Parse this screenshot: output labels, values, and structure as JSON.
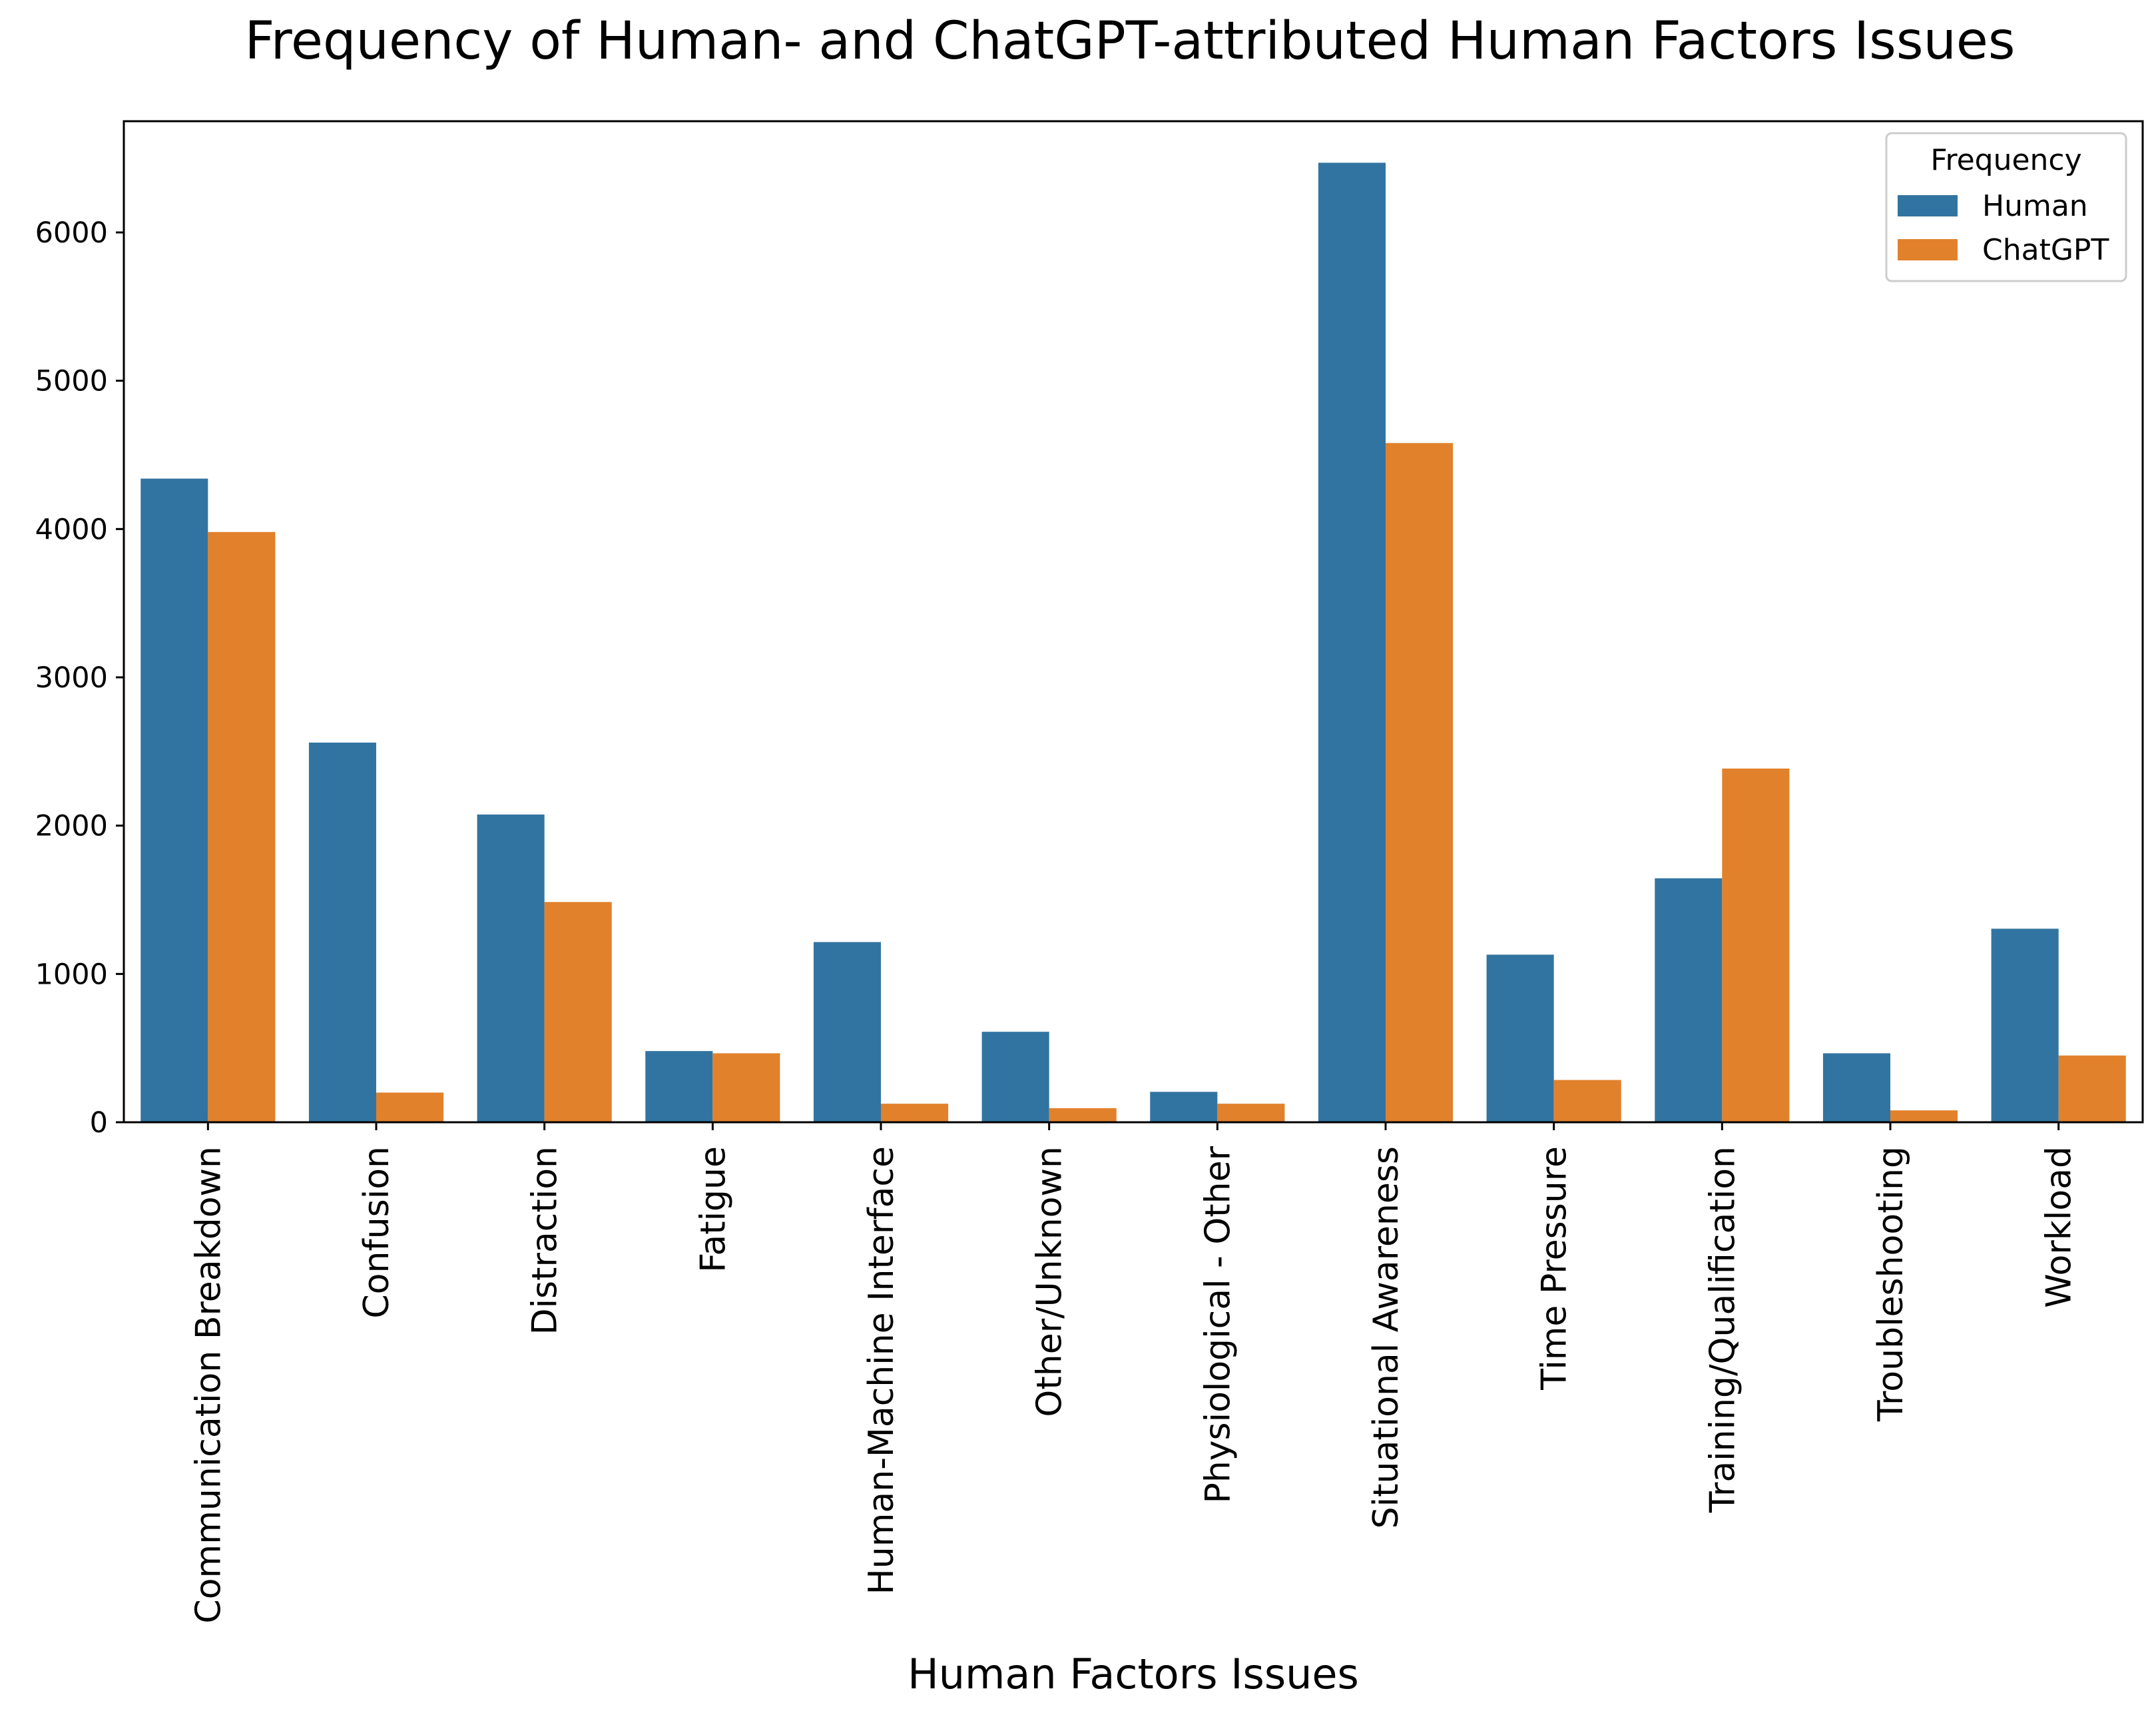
{
  "chart_data": {
    "type": "bar",
    "title": "Frequency of Human- and ChatGPT-attributed Human Factors Issues",
    "xlabel": "Human Factors Issues",
    "ylabel": "",
    "ylim": [
      0,
      6750
    ],
    "yticks": [
      0,
      1000,
      2000,
      3000,
      4000,
      5000,
      6000
    ],
    "grid": false,
    "legend": {
      "title": "Frequency",
      "placement": "top-right"
    },
    "categories": [
      "Communication Breakdown",
      "Confusion",
      "Distraction",
      "Fatigue",
      "Human-Machine Interface",
      "Other/Unknown",
      "Physiological - Other",
      "Situational Awareness",
      "Time Pressure",
      "Training/Qualification",
      "Troubleshooting",
      "Workload"
    ],
    "series": [
      {
        "name": "Human",
        "color": "#3274a1",
        "values": [
          4340,
          2560,
          2075,
          480,
          1215,
          610,
          205,
          6470,
          1130,
          1645,
          465,
          1305
        ]
      },
      {
        "name": "ChatGPT",
        "color": "#e1812c",
        "values": [
          3980,
          200,
          1485,
          465,
          125,
          95,
          125,
          4580,
          285,
          2385,
          80,
          450
        ]
      }
    ]
  }
}
